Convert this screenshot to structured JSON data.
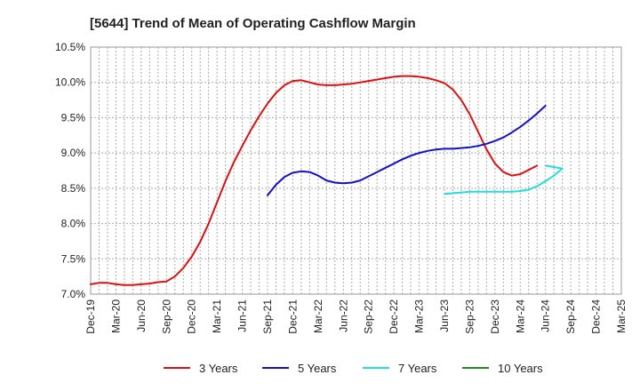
{
  "chart_data": {
    "type": "line",
    "title": "[5644]  Trend of Mean of Operating Cashflow Margin",
    "xlabel": "",
    "ylabel": "",
    "x_tick_labels": [
      "Dec-19",
      "Mar-20",
      "Jun-20",
      "Sep-20",
      "Dec-20",
      "Mar-21",
      "Jun-21",
      "Sep-21",
      "Dec-21",
      "Mar-22",
      "Jun-22",
      "Sep-22",
      "Dec-22",
      "Mar-23",
      "Jun-23",
      "Sep-23",
      "Dec-23",
      "Mar-24",
      "Jun-24",
      "Sep-24",
      "Dec-24",
      "Mar-25"
    ],
    "y_tick_labels": [
      "7.0%",
      "7.5%",
      "8.0%",
      "8.5%",
      "9.0%",
      "9.5%",
      "10.0%",
      "10.5%"
    ],
    "y_ticks": [
      7.0,
      7.5,
      8.0,
      8.5,
      9.0,
      9.5,
      10.0,
      10.5
    ],
    "ylim": [
      7.0,
      10.5
    ],
    "x_unit": "months since Dec-19",
    "xlim": [
      0,
      63
    ],
    "grid": true,
    "legend_position": "bottom",
    "series": [
      {
        "name": "3 Years",
        "color": "#dd1111",
        "points": [
          [
            0,
            7.14
          ],
          [
            1,
            7.16
          ],
          [
            2,
            7.16
          ],
          [
            3,
            7.14
          ],
          [
            4,
            7.13
          ],
          [
            5,
            7.13
          ],
          [
            6,
            7.14
          ],
          [
            7,
            7.15
          ],
          [
            8,
            7.17
          ],
          [
            9,
            7.18
          ],
          [
            10,
            7.25
          ],
          [
            11,
            7.37
          ],
          [
            12,
            7.53
          ],
          [
            13,
            7.74
          ],
          [
            14,
            8.0
          ],
          [
            15,
            8.3
          ],
          [
            16,
            8.6
          ],
          [
            17,
            8.87
          ],
          [
            18,
            9.1
          ],
          [
            19,
            9.32
          ],
          [
            20,
            9.52
          ],
          [
            21,
            9.7
          ],
          [
            22,
            9.85
          ],
          [
            23,
            9.96
          ],
          [
            24,
            10.02
          ],
          [
            25,
            10.03
          ],
          [
            26,
            10.0
          ],
          [
            27,
            9.97
          ],
          [
            28,
            9.96
          ],
          [
            29,
            9.96
          ],
          [
            30,
            9.97
          ],
          [
            31,
            9.98
          ],
          [
            32,
            10.0
          ],
          [
            33,
            10.02
          ],
          [
            34,
            10.04
          ],
          [
            35,
            10.06
          ],
          [
            36,
            10.08
          ],
          [
            37,
            10.09
          ],
          [
            38,
            10.09
          ],
          [
            39,
            10.08
          ],
          [
            40,
            10.06
          ],
          [
            41,
            10.03
          ],
          [
            42,
            9.99
          ],
          [
            43,
            9.9
          ],
          [
            44,
            9.75
          ],
          [
            45,
            9.55
          ],
          [
            46,
            9.3
          ],
          [
            47,
            9.05
          ],
          [
            48,
            8.85
          ],
          [
            49,
            8.73
          ],
          [
            50,
            8.68
          ],
          [
            51,
            8.7
          ],
          [
            52,
            8.76
          ],
          [
            53,
            8.82
          ]
        ]
      },
      {
        "name": "5 Years",
        "color": "#1111cc",
        "points": [
          [
            21,
            8.4
          ],
          [
            22,
            8.55
          ],
          [
            23,
            8.66
          ],
          [
            24,
            8.72
          ],
          [
            25,
            8.74
          ],
          [
            26,
            8.73
          ],
          [
            27,
            8.68
          ],
          [
            28,
            8.61
          ],
          [
            29,
            8.58
          ],
          [
            30,
            8.57
          ],
          [
            31,
            8.58
          ],
          [
            32,
            8.61
          ],
          [
            33,
            8.67
          ],
          [
            34,
            8.73
          ],
          [
            35,
            8.79
          ],
          [
            36,
            8.85
          ],
          [
            37,
            8.91
          ],
          [
            38,
            8.96
          ],
          [
            39,
            9.0
          ],
          [
            40,
            9.03
          ],
          [
            41,
            9.05
          ],
          [
            42,
            9.06
          ],
          [
            43,
            9.06
          ],
          [
            44,
            9.07
          ],
          [
            45,
            9.08
          ],
          [
            46,
            9.1
          ],
          [
            47,
            9.13
          ],
          [
            48,
            9.17
          ],
          [
            49,
            9.22
          ],
          [
            50,
            9.29
          ],
          [
            51,
            9.37
          ],
          [
            52,
            9.46
          ],
          [
            53,
            9.56
          ],
          [
            54,
            9.67
          ]
        ]
      },
      {
        "name": "7 Years",
        "color": "#22dddd",
        "points": [
          [
            42,
            8.42
          ],
          [
            43,
            8.43
          ],
          [
            44,
            8.44
          ],
          [
            45,
            8.45
          ],
          [
            46,
            8.45
          ],
          [
            47,
            8.45
          ],
          [
            48,
            8.45
          ],
          [
            49,
            8.45
          ],
          [
            50,
            8.45
          ],
          [
            51,
            8.46
          ],
          [
            52,
            8.48
          ],
          [
            53,
            8.53
          ],
          [
            54,
            8.6
          ],
          [
            55,
            8.68
          ],
          [
            56,
            8.78
          ],
          [
            54,
            8.82
          ]
        ]
      },
      {
        "name": "10 Years",
        "color": "#228822",
        "points": []
      }
    ]
  }
}
